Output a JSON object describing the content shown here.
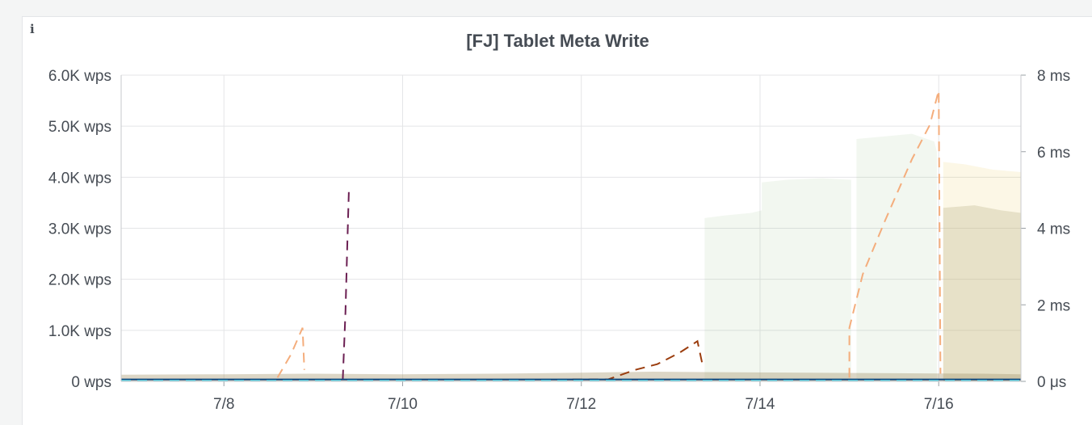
{
  "panel": {
    "title": "[FJ] Tablet Meta Write",
    "info_icon": "info-icon"
  },
  "chart_data": {
    "type": "line",
    "title": "[FJ] Tablet Meta Write",
    "x_ticks": [
      "7/8",
      "7/10",
      "7/12",
      "7/14",
      "7/16"
    ],
    "x_tick_days": [
      8,
      10,
      12,
      14,
      16
    ],
    "x_range_days": [
      6.85,
      16.92
    ],
    "y_left": {
      "unit": "wps",
      "range": [
        0,
        6000
      ],
      "ticks": [
        0,
        1000,
        2000,
        3000,
        4000,
        5000,
        6000
      ],
      "tick_labels": [
        "0 wps",
        "1.0K wps",
        "2.0K wps",
        "3.0K wps",
        "4.0K wps",
        "5.0K wps",
        "6.0K wps"
      ]
    },
    "y_right": {
      "unit": "ms",
      "range": [
        0,
        8
      ],
      "ticks": [
        0,
        2,
        4,
        6,
        8
      ],
      "tick_labels": [
        "0 μs",
        "2 ms",
        "4 ms",
        "6 ms",
        "8 ms"
      ]
    },
    "grid": true,
    "legend": "none",
    "areas": [
      {
        "axis": "left",
        "color": "#7eb26d",
        "opacity": 0.1,
        "points": [
          [
            13.38,
            0
          ],
          [
            13.38,
            3200
          ],
          [
            13.6,
            3250
          ],
          [
            13.9,
            3300
          ],
          [
            14.02,
            3350
          ],
          [
            14.02,
            3900
          ],
          [
            14.3,
            3950
          ],
          [
            14.7,
            3980
          ],
          [
            15.02,
            3950
          ],
          [
            15.02,
            0
          ],
          [
            15.08,
            0
          ],
          [
            15.08,
            4750
          ],
          [
            15.4,
            4800
          ],
          [
            15.7,
            4850
          ],
          [
            15.95,
            4700
          ],
          [
            15.98,
            4500
          ],
          [
            15.98,
            0
          ]
        ]
      },
      {
        "axis": "left",
        "color": "#e5ac0e",
        "opacity": 0.1,
        "points": [
          [
            16.05,
            0
          ],
          [
            16.05,
            4300
          ],
          [
            16.3,
            4250
          ],
          [
            16.6,
            4150
          ],
          [
            16.92,
            4100
          ],
          [
            16.92,
            0
          ]
        ]
      },
      {
        "axis": "left",
        "color": "#c1b78f",
        "opacity": 0.35,
        "points": [
          [
            16.05,
            0
          ],
          [
            16.05,
            3400
          ],
          [
            16.4,
            3450
          ],
          [
            16.7,
            3350
          ],
          [
            16.92,
            3300
          ],
          [
            16.92,
            0
          ]
        ]
      },
      {
        "axis": "left",
        "color": "#a89870",
        "opacity": 0.4,
        "points": [
          [
            6.85,
            0
          ],
          [
            6.85,
            130
          ],
          [
            8.0,
            140
          ],
          [
            9.0,
            150
          ],
          [
            10.0,
            140
          ],
          [
            11.0,
            150
          ],
          [
            12.0,
            170
          ],
          [
            12.8,
            190
          ],
          [
            13.5,
            180
          ],
          [
            14.5,
            170
          ],
          [
            15.5,
            160
          ],
          [
            16.5,
            150
          ],
          [
            16.92,
            140
          ],
          [
            16.92,
            0
          ]
        ]
      }
    ],
    "series": [
      {
        "axis": "right",
        "color": "#f4ad7c",
        "dash": true,
        "points": [
          [
            8.6,
            0.1
          ],
          [
            8.75,
            0.7
          ],
          [
            8.88,
            1.4
          ],
          [
            8.9,
            0.3
          ]
        ]
      },
      {
        "axis": "right",
        "color": "#6b1f52",
        "dash": true,
        "points": [
          [
            9.33,
            0.05
          ],
          [
            9.36,
            1.8
          ],
          [
            9.38,
            3.5
          ],
          [
            9.4,
            5.1
          ]
        ]
      },
      {
        "axis": "right",
        "color": "#9b3d0e",
        "dash": true,
        "points": [
          [
            11.9,
            0.05
          ],
          [
            12.3,
            0.05
          ],
          [
            12.6,
            0.3
          ],
          [
            12.85,
            0.45
          ],
          [
            13.1,
            0.75
          ],
          [
            13.3,
            1.05
          ],
          [
            13.35,
            0.5
          ]
        ]
      },
      {
        "axis": "right",
        "color": "#f4ad7c",
        "dash": true,
        "points": [
          [
            15.0,
            0.1
          ],
          [
            15.0,
            1.4
          ],
          [
            15.15,
            2.8
          ],
          [
            15.4,
            4.2
          ],
          [
            15.7,
            5.8
          ],
          [
            15.9,
            6.7
          ],
          [
            16.0,
            7.6
          ],
          [
            16.02,
            0.2
          ]
        ]
      },
      {
        "axis": "right",
        "color": "#0a437c",
        "dash": false,
        "points": [
          [
            6.85,
            0.05
          ],
          [
            16.92,
            0.05
          ]
        ]
      },
      {
        "axis": "right",
        "color": "#64d4e0",
        "dash": true,
        "points": [
          [
            6.85,
            0.02
          ],
          [
            16.92,
            0.02
          ]
        ]
      }
    ]
  }
}
